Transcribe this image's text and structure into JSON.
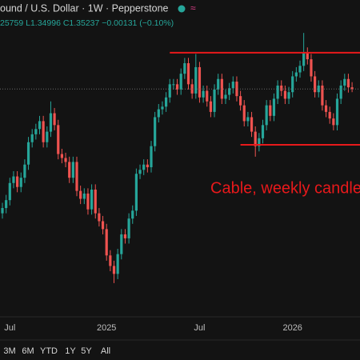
{
  "header": {
    "symbol": "ound / U.S. Dollar · 1W · Pepperstone",
    "ohlc": "25759 L1.34996 C1.35237 −0.00131 (−0.10%)"
  },
  "range_buttons": [
    "3M",
    "6M",
    "YTD",
    "1Y",
    "5Y",
    "All"
  ],
  "chart_data": {
    "type": "candlestick",
    "categories": [
      null,
      null,
      "Jul",
      null,
      null,
      null,
      null,
      null,
      null,
      null,
      null,
      null,
      null,
      null,
      null,
      null,
      null,
      null,
      null,
      null,
      null,
      null,
      null,
      null,
      null,
      null,
      null,
      null,
      "2025",
      null,
      null,
      null,
      null,
      null,
      null,
      null,
      null,
      null,
      null,
      null,
      null,
      null,
      null,
      null,
      null,
      null,
      null,
      null,
      null,
      null,
      null,
      null,
      null,
      "Jul",
      null,
      null,
      null,
      null,
      null,
      null,
      null,
      null,
      null,
      null,
      null,
      null,
      null,
      null,
      null,
      null,
      null,
      null,
      null,
      null,
      null,
      null,
      null,
      null,
      "2026",
      null,
      null,
      null,
      null,
      null,
      null,
      null,
      null,
      null,
      null,
      null,
      null,
      null,
      null,
      null,
      null
    ],
    "open": [
      1.258,
      1.262,
      1.268,
      1.281,
      1.286,
      1.278,
      1.285,
      1.295,
      1.312,
      1.318,
      1.322,
      1.328,
      1.312,
      1.32,
      1.334,
      1.325,
      1.303,
      1.3,
      1.297,
      1.285,
      1.297,
      1.275,
      1.269,
      1.273,
      1.261,
      1.276,
      1.258,
      1.252,
      1.246,
      1.226,
      1.218,
      1.212,
      1.227,
      1.242,
      1.239,
      1.254,
      1.26,
      1.288,
      1.291,
      1.295,
      1.293,
      1.309,
      1.331,
      1.337,
      1.339,
      1.346,
      1.356,
      1.356,
      1.352,
      1.364,
      1.372,
      1.356,
      1.349,
      1.369,
      1.346,
      1.351,
      1.343,
      1.335,
      1.352,
      1.36,
      1.345,
      1.348,
      1.353,
      1.358,
      1.347,
      1.34,
      1.328,
      1.331,
      1.32,
      1.309,
      1.315,
      1.325,
      1.34,
      1.332,
      1.345,
      1.355,
      1.351,
      1.345,
      1.35,
      1.362,
      1.365,
      1.37,
      1.38,
      1.375,
      1.362,
      1.35,
      1.355,
      1.34,
      1.335,
      1.33,
      1.325,
      1.345,
      1.355,
      1.36,
      1.3537
    ],
    "high": [
      1.266,
      1.272,
      1.285,
      1.29,
      1.29,
      1.289,
      1.299,
      1.316,
      1.322,
      1.326,
      1.332,
      1.332,
      1.324,
      1.343,
      1.338,
      1.329,
      1.307,
      1.304,
      1.301,
      1.301,
      1.301,
      1.279,
      1.277,
      1.277,
      1.28,
      1.28,
      1.262,
      1.256,
      1.25,
      1.23,
      1.222,
      1.231,
      1.246,
      1.246,
      1.258,
      1.264,
      1.292,
      1.295,
      1.299,
      1.299,
      1.313,
      1.335,
      1.341,
      1.343,
      1.35,
      1.36,
      1.36,
      1.36,
      1.368,
      1.376,
      1.376,
      1.36,
      1.379,
      1.373,
      1.355,
      1.355,
      1.347,
      1.356,
      1.364,
      1.364,
      1.352,
      1.357,
      1.362,
      1.362,
      1.351,
      1.344,
      1.335,
      1.335,
      1.324,
      1.319,
      1.329,
      1.344,
      1.344,
      1.349,
      1.359,
      1.359,
      1.355,
      1.354,
      1.366,
      1.369,
      1.374,
      1.395,
      1.384,
      1.379,
      1.366,
      1.359,
      1.359,
      1.344,
      1.339,
      1.334,
      1.349,
      1.359,
      1.364,
      1.364,
      1.3576
    ],
    "low": [
      1.254,
      1.258,
      1.264,
      1.277,
      1.274,
      1.274,
      1.281,
      1.291,
      1.308,
      1.314,
      1.318,
      1.308,
      1.308,
      1.316,
      1.321,
      1.299,
      1.296,
      1.293,
      1.281,
      1.281,
      1.271,
      1.265,
      1.265,
      1.257,
      1.257,
      1.254,
      1.248,
      1.242,
      1.222,
      1.214,
      1.205,
      1.208,
      1.223,
      1.235,
      1.235,
      1.25,
      1.256,
      1.284,
      1.287,
      1.289,
      1.289,
      1.305,
      1.327,
      1.333,
      1.335,
      1.342,
      1.352,
      1.348,
      1.348,
      1.36,
      1.352,
      1.345,
      1.345,
      1.342,
      1.342,
      1.339,
      1.331,
      1.331,
      1.348,
      1.341,
      1.341,
      1.344,
      1.349,
      1.343,
      1.336,
      1.324,
      1.324,
      1.316,
      1.301,
      1.305,
      1.311,
      1.321,
      1.328,
      1.328,
      1.341,
      1.347,
      1.341,
      1.341,
      1.346,
      1.358,
      1.361,
      1.366,
      1.371,
      1.358,
      1.346,
      1.346,
      1.336,
      1.331,
      1.326,
      1.321,
      1.321,
      1.341,
      1.351,
      1.3497,
      1.35
    ],
    "close": [
      1.262,
      1.268,
      1.281,
      1.286,
      1.278,
      1.285,
      1.295,
      1.312,
      1.318,
      1.322,
      1.328,
      1.312,
      1.32,
      1.334,
      1.325,
      1.303,
      1.3,
      1.297,
      1.285,
      1.297,
      1.275,
      1.269,
      1.273,
      1.261,
      1.276,
      1.258,
      1.252,
      1.246,
      1.226,
      1.218,
      1.212,
      1.227,
      1.242,
      1.239,
      1.254,
      1.26,
      1.288,
      1.291,
      1.295,
      1.293,
      1.309,
      1.331,
      1.337,
      1.339,
      1.346,
      1.356,
      1.356,
      1.352,
      1.364,
      1.372,
      1.356,
      1.349,
      1.369,
      1.346,
      1.351,
      1.343,
      1.335,
      1.352,
      1.36,
      1.345,
      1.348,
      1.353,
      1.358,
      1.347,
      1.34,
      1.328,
      1.331,
      1.32,
      1.309,
      1.315,
      1.325,
      1.34,
      1.332,
      1.345,
      1.355,
      1.351,
      1.345,
      1.35,
      1.362,
      1.365,
      1.37,
      1.38,
      1.375,
      1.362,
      1.35,
      1.355,
      1.34,
      1.335,
      1.33,
      1.325,
      1.345,
      1.355,
      1.36,
      1.3537,
      1.3524
    ],
    "ylim": [
      1.18,
      1.42
    ],
    "up_color": "#26a69a",
    "down_color": "#ef5350",
    "hlines": [
      {
        "y": 1.38,
        "x_start": 45
      },
      {
        "y": 1.31,
        "x_start": 64
      }
    ],
    "hline_color": "#e8191b",
    "annotation": "Cable, weekly candle"
  }
}
